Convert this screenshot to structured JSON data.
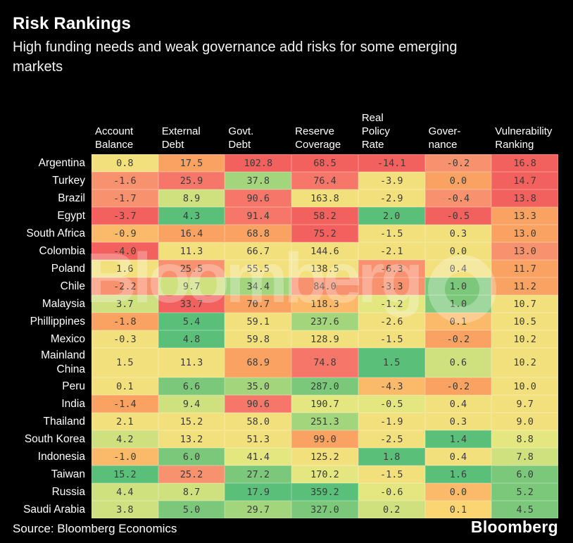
{
  "title": "Risk Rankings",
  "subtitle": "High funding needs and weak governance add risks for some emerging\nmarkets",
  "watermark": "Bloomberg",
  "footer": {
    "source": "Source: Bloomberg Economics",
    "brand": "Bloomberg"
  },
  "colors": {
    "background": "#000000",
    "cell_text": "#3b3b3b",
    "label_text": "#ffffff",
    "palette": {
      "r": "#f2615d",
      "rs": "#f6776a",
      "s": "#f8916e",
      "o": "#f9a261",
      "lo": "#fbba69",
      "am": "#fbd572",
      "y": "#f2e07d",
      "yg": "#e4e680",
      "g1": "#cfe07e",
      "g2": "#a3d57c",
      "g3": "#7cc87b",
      "g4": "#5abf79"
    }
  },
  "chart_data": {
    "type": "heatmap",
    "title": "Risk Rankings",
    "columns": [
      "Account\nBalance",
      "External\nDebt",
      "Govt.\nDebt",
      "Reserve\nCoverage",
      "Real\nPolicy\nRate",
      "Gover-\nnance",
      "Vulnerability\nRanking"
    ],
    "rows": [
      {
        "country": "Argentina",
        "values": [
          0.8,
          17.5,
          102.8,
          68.5,
          -14.1,
          -0.2,
          16.8
        ],
        "colors": [
          "y",
          "o",
          "r",
          "r",
          "r",
          "s",
          "r"
        ]
      },
      {
        "country": "Turkey",
        "values": [
          -1.6,
          25.9,
          37.8,
          76.4,
          -3.9,
          0.0,
          14.7
        ],
        "colors": [
          "s",
          "rs",
          "g2",
          "rs",
          "y",
          "o",
          "r"
        ]
      },
      {
        "country": "Brazil",
        "values": [
          -1.7,
          8.9,
          90.6,
          163.8,
          -2.9,
          -0.4,
          13.8
        ],
        "colors": [
          "s",
          "g1",
          "rs",
          "y",
          "y",
          "s",
          "r"
        ]
      },
      {
        "country": "Egypt",
        "values": [
          -3.7,
          4.3,
          91.4,
          58.2,
          2.0,
          -0.5,
          13.3
        ],
        "colors": [
          "r",
          "g4",
          "rs",
          "r",
          "g4",
          "r",
          "o"
        ]
      },
      {
        "country": "South Africa",
        "values": [
          -0.9,
          16.4,
          68.8,
          75.2,
          -1.5,
          0.3,
          13.0
        ],
        "colors": [
          "lo",
          "o",
          "o",
          "r",
          "y",
          "y",
          "o"
        ]
      },
      {
        "country": "Colombia",
        "values": [
          -4.0,
          11.3,
          66.7,
          144.6,
          -2.1,
          0.0,
          13.0
        ],
        "colors": [
          "r",
          "y",
          "y",
          "y",
          "y",
          "y",
          "s"
        ]
      },
      {
        "country": "Poland",
        "values": [
          1.6,
          25.5,
          55.5,
          138.5,
          -6.3,
          0.4,
          11.7
        ],
        "colors": [
          "y",
          "s",
          "y",
          "y",
          "s",
          "y",
          "o"
        ]
      },
      {
        "country": "Chile",
        "values": [
          -2.2,
          9.7,
          34.4,
          84.0,
          -3.3,
          1.0,
          11.2
        ],
        "colors": [
          "s",
          "g1",
          "g2",
          "s",
          "s",
          "g3",
          "o"
        ]
      },
      {
        "country": "Malaysia",
        "values": [
          3.7,
          33.7,
          70.7,
          118.3,
          -1.2,
          1.0,
          10.7
        ],
        "colors": [
          "g1",
          "r",
          "o",
          "lo",
          "yg",
          "g3",
          "y"
        ]
      },
      {
        "country": "Phillippines",
        "values": [
          -1.8,
          5.4,
          59.1,
          237.6,
          -2.6,
          0.1,
          10.5
        ],
        "colors": [
          "o",
          "g4",
          "y",
          "g2",
          "y",
          "lo",
          "y"
        ]
      },
      {
        "country": "Mexico",
        "values": [
          -0.3,
          4.8,
          59.8,
          128.9,
          -1.5,
          -0.2,
          10.2
        ],
        "colors": [
          "y",
          "g4",
          "y",
          "y",
          "y",
          "o",
          "y"
        ]
      },
      {
        "country": "Mainland\nChina",
        "values": [
          1.5,
          11.3,
          68.9,
          74.8,
          1.5,
          0.6,
          10.2
        ],
        "colors": [
          "y",
          "y",
          "o",
          "rs",
          "g4",
          "g1",
          "y"
        ]
      },
      {
        "country": "Peru",
        "values": [
          0.1,
          6.6,
          35.0,
          287.0,
          -4.3,
          -0.2,
          10.0
        ],
        "colors": [
          "y",
          "g3",
          "g2",
          "g3",
          "lo",
          "o",
          "y"
        ]
      },
      {
        "country": "India",
        "values": [
          -1.4,
          9.4,
          90.6,
          190.7,
          -0.5,
          0.4,
          9.7
        ],
        "colors": [
          "o",
          "g1",
          "rs",
          "yg",
          "yg",
          "y",
          "y"
        ]
      },
      {
        "country": "Thailand",
        "values": [
          2.1,
          15.2,
          58.0,
          251.3,
          -1.9,
          0.3,
          9.0
        ],
        "colors": [
          "y",
          "y",
          "y",
          "g2",
          "y",
          "y",
          "y"
        ]
      },
      {
        "country": "South Korea",
        "values": [
          4.2,
          13.2,
          51.3,
          99.0,
          -2.5,
          1.4,
          8.8
        ],
        "colors": [
          "g1",
          "y",
          "y",
          "o",
          "y",
          "g4",
          "yg"
        ]
      },
      {
        "country": "Indonesia",
        "values": [
          -1.0,
          6.0,
          41.4,
          125.2,
          1.8,
          0.4,
          7.8
        ],
        "colors": [
          "lo",
          "g3",
          "yg",
          "y",
          "g4",
          "y",
          "g1"
        ]
      },
      {
        "country": "Taiwan",
        "values": [
          15.2,
          25.2,
          27.2,
          170.2,
          -1.5,
          1.6,
          6.0
        ],
        "colors": [
          "g4",
          "s",
          "g3",
          "yg",
          "y",
          "g4",
          "g3"
        ]
      },
      {
        "country": "Russia",
        "values": [
          4.4,
          8.7,
          17.9,
          359.2,
          -0.6,
          0.0,
          5.2
        ],
        "colors": [
          "g1",
          "g1",
          "g4",
          "g4",
          "yg",
          "lo",
          "g3"
        ]
      },
      {
        "country": "Saudi Arabia",
        "values": [
          3.8,
          5.0,
          29.7,
          327.0,
          0.2,
          0.1,
          4.5
        ],
        "colors": [
          "g1",
          "g3",
          "g2",
          "g3",
          "g1",
          "am",
          "g3"
        ]
      }
    ]
  }
}
